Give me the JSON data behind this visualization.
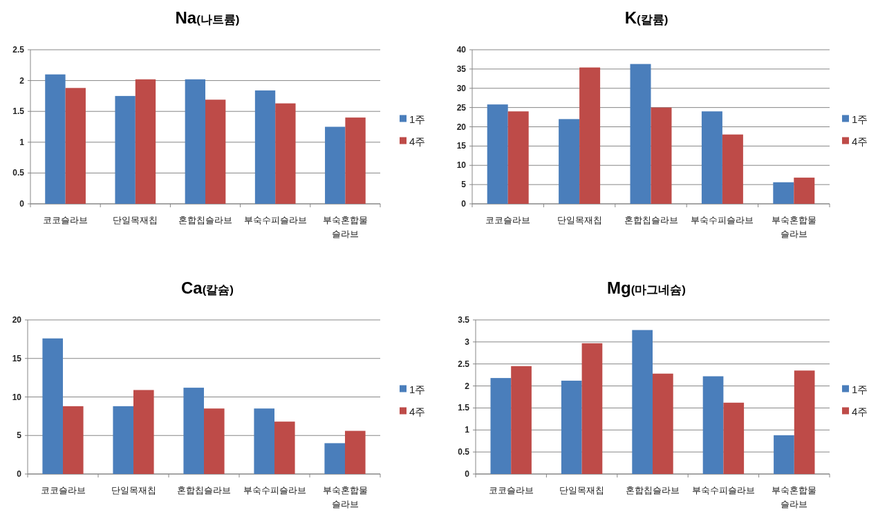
{
  "chart_data": [
    {
      "type": "bar",
      "title": "Na(나트륨)",
      "categories": [
        "코코슬라브",
        "단일목재칩",
        "혼합칩슬라브",
        "부숙수피슬라브",
        "부숙혼합물\n슬라브"
      ],
      "series": [
        {
          "name": "1주",
          "color": "#4a7ebb",
          "values": [
            2.1,
            1.75,
            2.02,
            1.84,
            1.25
          ]
        },
        {
          "name": "4주",
          "color": "#be4b48",
          "values": [
            1.88,
            2.02,
            1.69,
            1.63,
            1.4
          ]
        }
      ],
      "ylim": [
        0,
        2.5
      ],
      "yticks": [
        0,
        0.5,
        1,
        1.5,
        2,
        2.5
      ],
      "grid": "y",
      "legend": "right"
    },
    {
      "type": "bar",
      "title": "K(칼륨)",
      "categories": [
        "코코슬라브",
        "단일목재칩",
        "혼합칩슬라브",
        "부숙수피슬라브",
        "부숙혼합물\n슬라브"
      ],
      "series": [
        {
          "name": "1주",
          "color": "#4a7ebb",
          "values": [
            25.8,
            22,
            36.3,
            24,
            5.6
          ]
        },
        {
          "name": "4주",
          "color": "#be4b48",
          "values": [
            24,
            35.4,
            25,
            18,
            6.8
          ]
        }
      ],
      "ylim": [
        0,
        40
      ],
      "yticks": [
        0,
        5,
        10,
        15,
        20,
        25,
        30,
        35,
        40
      ],
      "grid": "y",
      "legend": "right"
    },
    {
      "type": "bar",
      "title": "Ca(칼슘)",
      "categories": [
        "코코슬라브",
        "단일목재칩",
        "혼합칩슬라브",
        "부숙수피슬라브",
        "부숙혼합물\n슬라브"
      ],
      "series": [
        {
          "name": "1주",
          "color": "#4a7ebb",
          "values": [
            17.6,
            8.8,
            11.2,
            8.5,
            4.0
          ]
        },
        {
          "name": "4주",
          "color": "#be4b48",
          "values": [
            8.8,
            10.9,
            8.5,
            6.8,
            5.6
          ]
        }
      ],
      "ylim": [
        0,
        20
      ],
      "yticks": [
        0,
        5,
        10,
        15,
        20
      ],
      "grid": "y",
      "legend": "right"
    },
    {
      "type": "bar",
      "title": "Mg(마그네슘)",
      "categories": [
        "코코슬라브",
        "단일목재칩",
        "혼합칩슬라브",
        "부숙수피슬라브",
        "부숙혼합물\n슬라브"
      ],
      "series": [
        {
          "name": "1주",
          "color": "#4a7ebb",
          "values": [
            2.18,
            2.12,
            3.27,
            2.22,
            0.88
          ]
        },
        {
          "name": "4주",
          "color": "#be4b48",
          "values": [
            2.45,
            2.97,
            2.28,
            1.62,
            2.35
          ]
        }
      ],
      "ylim": [
        0,
        3.5
      ],
      "yticks": [
        0,
        0.5,
        1,
        1.5,
        2,
        2.5,
        3,
        3.5
      ],
      "grid": "y",
      "legend": "right"
    }
  ]
}
